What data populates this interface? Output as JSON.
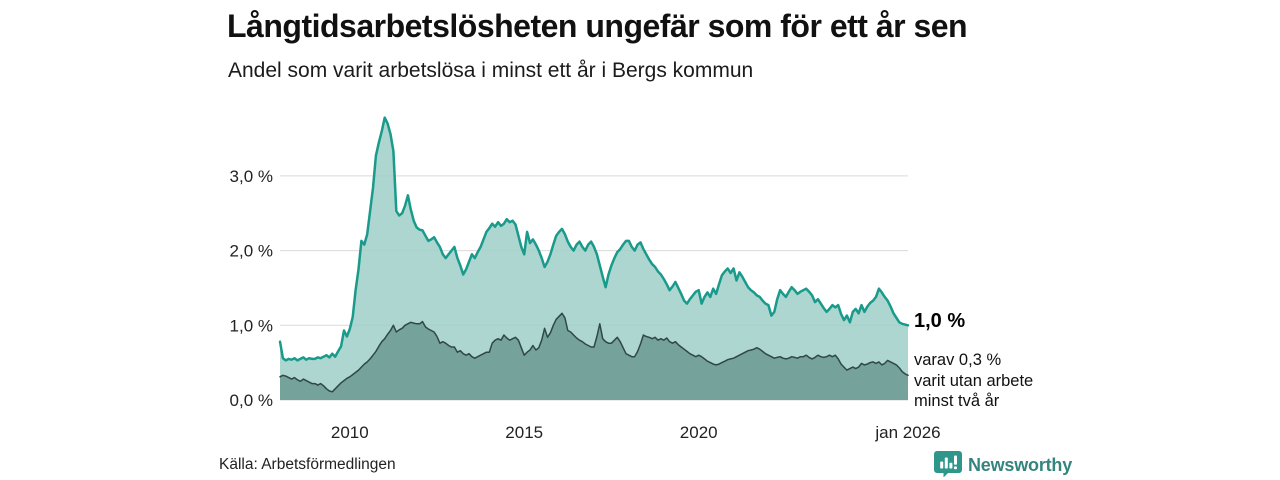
{
  "header": {
    "title": "Långtidsarbetslösheten ungefär som för ett år sen",
    "subtitle": "Andel som varit arbetslösa i minst ett år i Bergs kommun"
  },
  "annotations": {
    "end_value_label": "1,0 %",
    "sub_value_lines": [
      "varav 0,3 %",
      "varit utan arbete",
      "minst två år"
    ]
  },
  "footer": {
    "source": "Källa: Arbetsförmedlingen",
    "brand": "Newsworthy"
  },
  "colors": {
    "accent_teal": "#199a8b",
    "light_fill": "#9dcfc7",
    "dark_fill": "#6b9a92",
    "dark_stroke": "#304846",
    "grid": "#d9d9d9",
    "brand_teal": "#34857f",
    "text": "#111111"
  },
  "chart_data": {
    "type": "area",
    "title": "Andel som varit arbetslösa i minst ett år i Bergs kommun",
    "x_start": "2008-01",
    "x_end": "2026-01",
    "x_step": "month",
    "ylim": [
      0,
      3.9
    ],
    "grid": true,
    "unit": "%",
    "y_ticks": [
      {
        "value": 0,
        "label": "0,0 %"
      },
      {
        "value": 1,
        "label": "1,0 %"
      },
      {
        "value": 2,
        "label": "2,0 %"
      },
      {
        "value": 3,
        "label": "3,0 %"
      }
    ],
    "x_ticks": [
      {
        "index": 24,
        "label": "2010"
      },
      {
        "index": 84,
        "label": "2015"
      },
      {
        "index": 144,
        "label": "2020"
      },
      {
        "index": 216,
        "label": "jan 2026"
      }
    ],
    "end_values": {
      "minst_ett_ar": 1.0,
      "minst_tva_ar": 0.3
    },
    "series": [
      {
        "id": "arbetslosa-minst-ett-ar",
        "name": "Andel som varit arbetslösa i minst ett år",
        "color": "#199a8b",
        "fill": "#9dcfc7",
        "stroke_width": 2.5,
        "values": [
          0.78,
          0.56,
          0.53,
          0.55,
          0.54,
          0.56,
          0.53,
          0.55,
          0.57,
          0.54,
          0.56,
          0.55,
          0.55,
          0.57,
          0.56,
          0.58,
          0.6,
          0.57,
          0.62,
          0.58,
          0.65,
          0.72,
          0.93,
          0.85,
          0.95,
          1.11,
          1.47,
          1.75,
          2.13,
          2.08,
          2.22,
          2.53,
          2.84,
          3.27,
          3.45,
          3.6,
          3.78,
          3.7,
          3.56,
          3.33,
          2.53,
          2.47,
          2.5,
          2.6,
          2.74,
          2.55,
          2.4,
          2.31,
          2.28,
          2.27,
          2.2,
          2.13,
          2.15,
          2.18,
          2.11,
          2.05,
          1.95,
          1.9,
          1.95,
          2.0,
          2.05,
          1.9,
          1.8,
          1.68,
          1.75,
          1.85,
          1.95,
          1.9,
          1.98,
          2.05,
          2.15,
          2.25,
          2.3,
          2.36,
          2.32,
          2.38,
          2.33,
          2.36,
          2.42,
          2.38,
          2.4,
          2.35,
          2.2,
          2.05,
          1.95,
          2.25,
          2.1,
          2.15,
          2.08,
          2.0,
          1.9,
          1.78,
          1.85,
          1.95,
          2.08,
          2.2,
          2.25,
          2.29,
          2.22,
          2.12,
          2.05,
          2.0,
          2.08,
          2.12,
          2.05,
          2.0,
          2.08,
          2.12,
          2.05,
          1.95,
          1.8,
          1.65,
          1.51,
          1.68,
          1.8,
          1.9,
          1.98,
          2.02,
          2.08,
          2.13,
          2.13,
          2.05,
          2.0,
          2.08,
          2.11,
          2.02,
          1.95,
          1.88,
          1.82,
          1.78,
          1.72,
          1.68,
          1.62,
          1.55,
          1.47,
          1.52,
          1.58,
          1.5,
          1.42,
          1.33,
          1.29,
          1.35,
          1.4,
          1.45,
          1.47,
          1.29,
          1.38,
          1.44,
          1.38,
          1.49,
          1.42,
          1.55,
          1.67,
          1.72,
          1.76,
          1.7,
          1.76,
          1.6,
          1.71,
          1.65,
          1.58,
          1.51,
          1.47,
          1.44,
          1.4,
          1.38,
          1.33,
          1.29,
          1.27,
          1.13,
          1.18,
          1.35,
          1.47,
          1.42,
          1.38,
          1.45,
          1.51,
          1.47,
          1.42,
          1.45,
          1.47,
          1.49,
          1.45,
          1.4,
          1.31,
          1.35,
          1.29,
          1.23,
          1.18,
          1.22,
          1.27,
          1.24,
          1.27,
          1.15,
          1.07,
          1.13,
          1.04,
          1.18,
          1.22,
          1.16,
          1.27,
          1.18,
          1.25,
          1.3,
          1.33,
          1.38,
          1.49,
          1.44,
          1.38,
          1.33,
          1.25,
          1.16,
          1.1,
          1.04,
          1.02,
          1.01,
          1.0
        ]
      },
      {
        "id": "utan-arbete-minst-tva-ar",
        "name": "varav utan arbete minst två år",
        "color": "#304846",
        "fill": "#6b9a92",
        "stroke_width": 1.5,
        "values": [
          0.31,
          0.33,
          0.32,
          0.3,
          0.28,
          0.3,
          0.27,
          0.25,
          0.28,
          0.26,
          0.24,
          0.22,
          0.22,
          0.2,
          0.22,
          0.19,
          0.15,
          0.12,
          0.11,
          0.15,
          0.19,
          0.23,
          0.26,
          0.29,
          0.31,
          0.34,
          0.37,
          0.4,
          0.44,
          0.48,
          0.51,
          0.55,
          0.6,
          0.65,
          0.72,
          0.78,
          0.82,
          0.88,
          0.93,
          1.0,
          0.91,
          0.94,
          0.96,
          1.0,
          1.02,
          1.04,
          1.03,
          1.02,
          1.02,
          1.05,
          0.98,
          0.95,
          0.93,
          0.91,
          0.85,
          0.76,
          0.78,
          0.76,
          0.73,
          0.71,
          0.71,
          0.64,
          0.66,
          0.62,
          0.6,
          0.62,
          0.58,
          0.56,
          0.58,
          0.6,
          0.62,
          0.64,
          0.64,
          0.76,
          0.8,
          0.82,
          0.8,
          0.87,
          0.83,
          0.8,
          0.82,
          0.84,
          0.8,
          0.7,
          0.6,
          0.64,
          0.67,
          0.73,
          0.67,
          0.7,
          0.8,
          0.96,
          0.84,
          0.9,
          1.0,
          1.08,
          1.12,
          1.16,
          1.1,
          0.93,
          0.91,
          0.87,
          0.83,
          0.8,
          0.78,
          0.75,
          0.73,
          0.71,
          0.71,
          0.85,
          1.02,
          0.82,
          0.78,
          0.76,
          0.76,
          0.8,
          0.84,
          0.78,
          0.7,
          0.62,
          0.6,
          0.58,
          0.58,
          0.65,
          0.75,
          0.87,
          0.85,
          0.84,
          0.82,
          0.84,
          0.8,
          0.82,
          0.8,
          0.83,
          0.78,
          0.76,
          0.78,
          0.74,
          0.71,
          0.68,
          0.65,
          0.62,
          0.6,
          0.58,
          0.6,
          0.58,
          0.55,
          0.52,
          0.5,
          0.48,
          0.47,
          0.48,
          0.5,
          0.52,
          0.54,
          0.55,
          0.56,
          0.58,
          0.6,
          0.62,
          0.64,
          0.66,
          0.67,
          0.68,
          0.7,
          0.68,
          0.65,
          0.62,
          0.6,
          0.58,
          0.56,
          0.57,
          0.58,
          0.56,
          0.55,
          0.56,
          0.58,
          0.57,
          0.56,
          0.58,
          0.58,
          0.6,
          0.57,
          0.55,
          0.57,
          0.6,
          0.58,
          0.57,
          0.58,
          0.6,
          0.58,
          0.6,
          0.55,
          0.48,
          0.44,
          0.4,
          0.42,
          0.44,
          0.42,
          0.44,
          0.49,
          0.47,
          0.48,
          0.5,
          0.51,
          0.49,
          0.51,
          0.47,
          0.49,
          0.53,
          0.51,
          0.49,
          0.47,
          0.43,
          0.38,
          0.35,
          0.33
        ]
      }
    ]
  }
}
